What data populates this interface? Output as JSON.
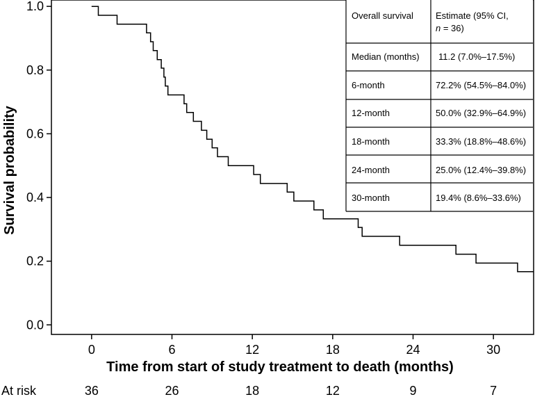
{
  "chart_data": {
    "type": "line",
    "subtype": "kaplan-meier step curve",
    "xlabel": "Time from start of study treatment to death (months)",
    "ylabel": "Survival probability",
    "xlim": [
      -3,
      33
    ],
    "ylim": [
      -0.03,
      1.02
    ],
    "x_ticks": [
      0,
      6,
      12,
      18,
      24,
      30
    ],
    "y_ticks": [
      "0.0",
      "0.2",
      "0.4",
      "0.6",
      "0.8",
      "1.0"
    ],
    "series": [
      {
        "name": "Overall survival",
        "steps": [
          {
            "t": 0.0,
            "s": 1.0
          },
          {
            "t": 0.5,
            "s": 0.972
          },
          {
            "t": 1.9,
            "s": 0.944
          },
          {
            "t": 4.1,
            "s": 0.917
          },
          {
            "t": 4.4,
            "s": 0.889
          },
          {
            "t": 4.6,
            "s": 0.861
          },
          {
            "t": 4.9,
            "s": 0.833
          },
          {
            "t": 5.2,
            "s": 0.806
          },
          {
            "t": 5.4,
            "s": 0.778
          },
          {
            "t": 5.5,
            "s": 0.75
          },
          {
            "t": 5.7,
            "s": 0.722
          },
          {
            "t": 6.9,
            "s": 0.694
          },
          {
            "t": 7.1,
            "s": 0.667
          },
          {
            "t": 7.6,
            "s": 0.639
          },
          {
            "t": 8.2,
            "s": 0.611
          },
          {
            "t": 8.6,
            "s": 0.583
          },
          {
            "t": 9.0,
            "s": 0.556
          },
          {
            "t": 9.4,
            "s": 0.528
          },
          {
            "t": 10.2,
            "s": 0.5
          },
          {
            "t": 12.1,
            "s": 0.472
          },
          {
            "t": 12.6,
            "s": 0.444
          },
          {
            "t": 14.6,
            "s": 0.417
          },
          {
            "t": 15.1,
            "s": 0.389
          },
          {
            "t": 16.6,
            "s": 0.361
          },
          {
            "t": 17.3,
            "s": 0.333
          },
          {
            "t": 19.9,
            "s": 0.306
          },
          {
            "t": 20.2,
            "s": 0.278
          },
          {
            "t": 23.0,
            "s": 0.25
          },
          {
            "t": 27.2,
            "s": 0.222
          },
          {
            "t": 28.7,
            "s": 0.194
          },
          {
            "t": 31.8,
            "s": 0.167
          }
        ],
        "end_time": 33.0
      }
    ],
    "at_risk": {
      "label": "At risk",
      "times": [
        0,
        6,
        12,
        18,
        24,
        30
      ],
      "counts": [
        "36",
        "26",
        "18",
        "12",
        "9",
        "7"
      ]
    },
    "inset_table": {
      "header": {
        "col1": "Overall survival",
        "col2_prefix": "Estimate (95% CI,",
        "col2_n_italic": "n",
        "col2_n_rest": " = 36)"
      },
      "rows": [
        {
          "label": "Median (months)",
          "value": "11.2 (7.0%–17.5%)"
        },
        {
          "label": "6-month",
          "value": "72.2% (54.5%–84.0%)"
        },
        {
          "label": "12-month",
          "value": "50.0% (32.9%–64.9%)"
        },
        {
          "label": "18-month",
          "value": "33.3% (18.8%–48.6%)"
        },
        {
          "label": "24-month",
          "value": "25.0% (12.4%–39.8%)"
        },
        {
          "label": "30-month",
          "value": "19.4% (8.6%–33.6%)"
        }
      ]
    }
  }
}
